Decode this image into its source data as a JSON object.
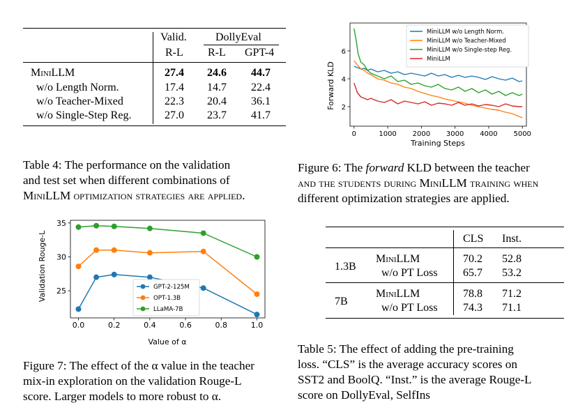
{
  "table4": {
    "header": {
      "valid": "Valid.",
      "dollyeval": "DollyEval",
      "rl_a": "R-L",
      "rl_b": "R-L",
      "gpt4": "GPT-4"
    },
    "rows": [
      {
        "label": "MiniLLM",
        "valid": "27.4",
        "rl": "24.6",
        "gpt4": "44.7"
      },
      {
        "label": "w/o Length Norm.",
        "valid": "17.4",
        "rl": "14.7",
        "gpt4": "22.4"
      },
      {
        "label": "w/o Teacher-Mixed",
        "valid": "22.3",
        "rl": "20.4",
        "gpt4": "36.1"
      },
      {
        "label": "w/o Single-Step Reg.",
        "valid": "27.0",
        "rl": "23.7",
        "gpt4": "41.7"
      }
    ]
  },
  "caption4": {
    "l1": "Table 4:  The performance on the validation",
    "l2": "and test set when different combinations of",
    "l3": "MiniLLM optimization strategies are applied."
  },
  "caption6": {
    "l1_pre": "Figure 6: The ",
    "l1_em": "forward",
    "l1_post": " KLD between the teacher",
    "l2": "and the students during MiniLLM training when",
    "l3": "different optimization strategies are applied."
  },
  "caption7": {
    "l1": "Figure 7: The effect of the α value in the teacher",
    "l2": "mix-in exploration on the validation Rouge-L",
    "l3": "score. Larger models to more robust to α."
  },
  "caption5": {
    "l1": "Table 5: The effect of adding the pre-training",
    "l2": "loss. “CLS” is the average accuracy scores on",
    "l3": "SST2 and BoolQ. “Inst.” is the average Rouge-L",
    "l4": "score on DollyEval, SelfIns"
  },
  "table5": {
    "header": {
      "cls": "CLS",
      "inst": "Inst."
    },
    "groups": [
      {
        "size": "1.3B",
        "rows": [
          {
            "method": "MiniLLM",
            "cls": "70.2",
            "inst": "52.8"
          },
          {
            "method": "w/o PT Loss",
            "cls": "65.7",
            "inst": "53.2"
          }
        ]
      },
      {
        "size": "7B",
        "rows": [
          {
            "method": "MiniLLM",
            "cls": "78.8",
            "inst": "71.2"
          },
          {
            "method": "w/o PT Loss",
            "cls": "74.3",
            "inst": "71.1"
          }
        ]
      }
    ]
  },
  "chart_data": [
    {
      "type": "line",
      "title": "",
      "xlabel": "Training Steps",
      "ylabel": "Forward KLD",
      "xlim": [
        -120,
        5120
      ],
      "ylim": [
        0.6,
        8.0
      ],
      "xticks": [
        "0",
        "1000",
        "2000",
        "3000",
        "4000",
        "5000"
      ],
      "yticks": [
        "2",
        "4",
        "6"
      ],
      "legend_position": "top-right",
      "series": [
        {
          "name": "MiniLLM w/o Length Norm.",
          "color": "#1f77b4",
          "x": [
            0,
            100,
            200,
            300,
            400,
            500,
            700,
            900,
            1100,
            1300,
            1500,
            1700,
            1900,
            2100,
            2300,
            2500,
            2700,
            2900,
            3100,
            3300,
            3500,
            3700,
            3900,
            4100,
            4300,
            4500,
            4700,
            4900,
            5000
          ],
          "y": [
            4.9,
            4.8,
            4.7,
            4.75,
            4.6,
            4.7,
            4.5,
            4.6,
            4.4,
            4.5,
            4.3,
            4.4,
            4.3,
            4.2,
            4.4,
            4.2,
            4.3,
            4.1,
            4.25,
            4.1,
            4.2,
            4.1,
            3.95,
            4.15,
            4.0,
            3.9,
            4.05,
            3.8,
            3.85
          ]
        },
        {
          "name": "MiniLLM w/o Teacher-Mixed",
          "color": "#ff7f0e",
          "x": [
            0,
            100,
            200,
            300,
            400,
            500,
            700,
            900,
            1100,
            1300,
            1500,
            1700,
            1900,
            2100,
            2300,
            2500,
            2700,
            2900,
            3100,
            3300,
            3500,
            3700,
            3900,
            4100,
            4300,
            4500,
            4700,
            4900,
            5000
          ],
          "y": [
            5.3,
            5.0,
            4.7,
            4.6,
            4.4,
            4.3,
            4.0,
            3.9,
            3.7,
            3.6,
            3.4,
            3.3,
            3.1,
            2.95,
            2.8,
            2.7,
            2.55,
            2.45,
            2.35,
            2.25,
            2.1,
            2.0,
            1.9,
            1.8,
            1.75,
            1.6,
            1.5,
            1.3,
            1.2
          ]
        },
        {
          "name": "MiniLLM w/o Single-step Reg.",
          "color": "#2ca02c",
          "x": [
            0,
            60,
            120,
            200,
            300,
            400,
            500,
            700,
            900,
            1100,
            1300,
            1500,
            1700,
            1900,
            2100,
            2300,
            2500,
            2700,
            2900,
            3100,
            3300,
            3500,
            3700,
            3900,
            4100,
            4300,
            4500,
            4700,
            4900,
            5000
          ],
          "y": [
            7.6,
            6.8,
            5.8,
            5.2,
            5.0,
            4.6,
            4.4,
            4.2,
            4.0,
            4.2,
            3.8,
            3.9,
            3.6,
            3.7,
            3.5,
            3.4,
            3.6,
            3.3,
            3.2,
            3.4,
            3.1,
            3.3,
            3.0,
            3.2,
            2.9,
            3.1,
            2.8,
            3.0,
            2.8,
            2.9
          ]
        },
        {
          "name": "MiniLLM",
          "color": "#d62728",
          "x": [
            0,
            100,
            200,
            300,
            400,
            500,
            700,
            900,
            1100,
            1300,
            1500,
            1700,
            1900,
            2100,
            2300,
            2500,
            2700,
            2900,
            3100,
            3300,
            3500,
            3700,
            3900,
            4100,
            4300,
            4500,
            4700,
            4900,
            5000
          ],
          "y": [
            3.7,
            3.0,
            2.7,
            2.6,
            2.5,
            2.6,
            2.4,
            2.3,
            2.5,
            2.2,
            2.4,
            2.3,
            2.2,
            2.35,
            2.1,
            2.25,
            2.2,
            2.1,
            2.3,
            2.1,
            2.2,
            2.05,
            2.15,
            2.1,
            2.0,
            2.2,
            2.05,
            2.0,
            2.0
          ]
        }
      ]
    },
    {
      "type": "line",
      "title": "",
      "xlabel": "Value of α",
      "ylabel": "Validation Rouge-L",
      "xlim": [
        -0.045,
        1.045
      ],
      "ylim": [
        21.0,
        35.4
      ],
      "xticks": [
        "0.0",
        "0.2",
        "0.4",
        "0.6",
        "0.8",
        "1.0"
      ],
      "yticks": [
        "25",
        "30",
        "35"
      ],
      "legend_position": "lower-center",
      "series": [
        {
          "name": "GPT-2-125M",
          "color": "#1f77b4",
          "x": [
            0.0,
            0.1,
            0.2,
            0.4,
            0.7,
            1.0
          ],
          "y": [
            22.3,
            27.0,
            27.4,
            27.0,
            25.4,
            21.5
          ]
        },
        {
          "name": "OPT-1.3B",
          "color": "#ff7f0e",
          "x": [
            0.0,
            0.1,
            0.2,
            0.4,
            0.7,
            1.0
          ],
          "y": [
            28.6,
            31.0,
            31.0,
            30.6,
            30.8,
            24.5
          ]
        },
        {
          "name": "LLaMA-7B",
          "color": "#2ca02c",
          "x": [
            0.0,
            0.1,
            0.2,
            0.4,
            0.7,
            1.0
          ],
          "y": [
            34.4,
            34.6,
            34.5,
            34.2,
            33.5,
            30.0
          ]
        }
      ]
    }
  ]
}
